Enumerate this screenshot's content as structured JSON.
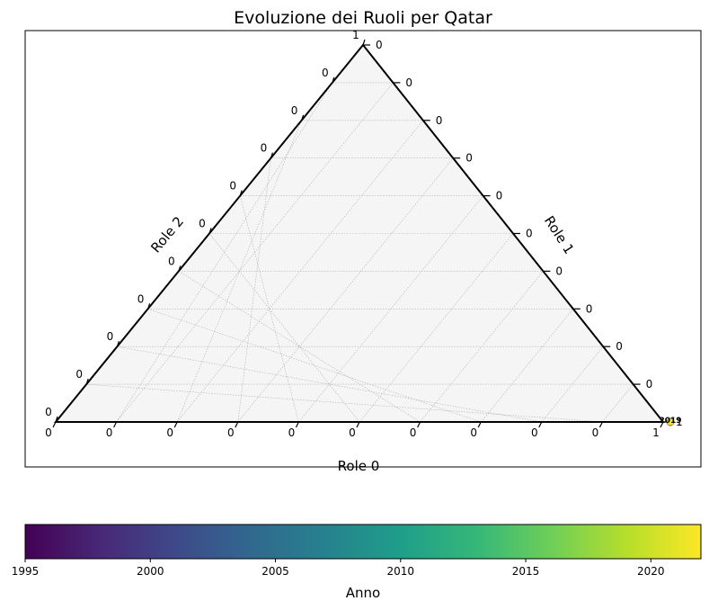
{
  "chart_data": {
    "type": "scatter",
    "subtype": "ternary",
    "title": "Evoluzione dei Ruoli per Qatar",
    "axes": {
      "bottom": {
        "label": "Role 0",
        "tick_labels": [
          "0",
          "0",
          "0",
          "0",
          "0",
          "0",
          "0",
          "0",
          "0",
          "0",
          "1"
        ]
      },
      "right": {
        "label": "Role 1",
        "tick_labels": [
          "0",
          "0",
          "0",
          "0",
          "0",
          "0",
          "0",
          "0",
          "0",
          "0",
          "1"
        ]
      },
      "left": {
        "label": "Role 2",
        "tick_labels": [
          "0",
          "0",
          "0",
          "0",
          "0",
          "0",
          "0",
          "0",
          "0",
          "0",
          "1"
        ]
      },
      "range": [
        0,
        1
      ],
      "grid": true
    },
    "points": [
      {
        "year": 2018,
        "role0": 1.0,
        "role1": 0.0,
        "role2": 0.0
      },
      {
        "year": 2019,
        "role0": 1.0,
        "role1": 0.0,
        "role2": 0.0
      },
      {
        "year": 2020,
        "role0": 1.0,
        "role1": 0.0,
        "role2": 0.0
      },
      {
        "year": 2021,
        "role0": 1.0,
        "role1": 0.0,
        "role2": 0.0
      },
      {
        "year": 2022,
        "role0": 1.0,
        "role1": 0.0,
        "role2": 0.0
      }
    ],
    "point_label_text": "2019",
    "colorbar": {
      "label": "Anno",
      "colormap": "viridis",
      "range": [
        1995,
        2022
      ],
      "ticks": [
        "1995",
        "2000",
        "2005",
        "2010",
        "2015",
        "2020"
      ]
    }
  },
  "colors": {
    "axis": "#000000",
    "grid": "#b0b0b0",
    "triangle_fill": "#f5f5f5",
    "viridis": [
      "#440154",
      "#482878",
      "#3e4989",
      "#31688e",
      "#26828e",
      "#1f9e89",
      "#35b779",
      "#6ece58",
      "#b5de2b",
      "#fde725"
    ]
  }
}
